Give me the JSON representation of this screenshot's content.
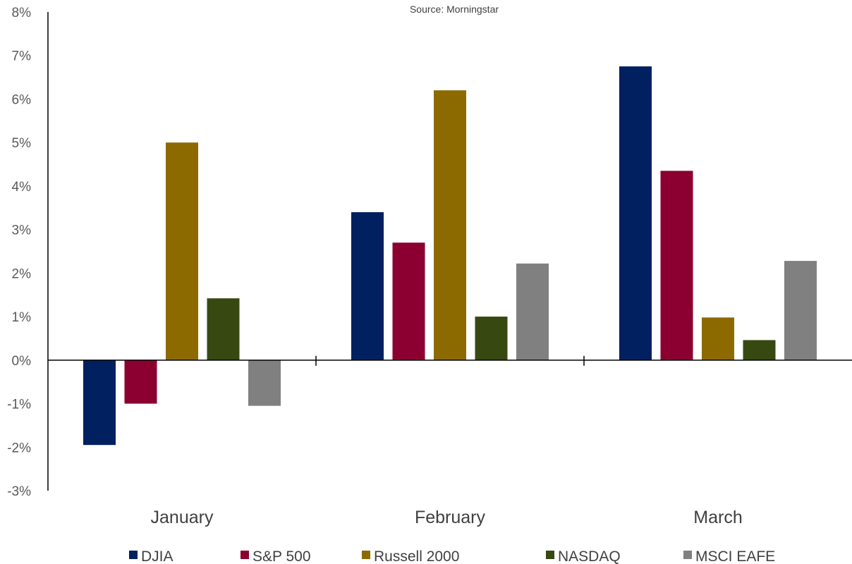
{
  "chart_data": {
    "type": "bar",
    "subtitle": "Source: Morningstar",
    "categories": [
      "January",
      "February",
      "March"
    ],
    "series": [
      {
        "name": "DJIA",
        "color": "#002060",
        "values": [
          -1.95,
          3.4,
          6.75
        ]
      },
      {
        "name": "S&P 500",
        "color": "#8B0030",
        "values": [
          -1.0,
          2.7,
          4.35
        ]
      },
      {
        "name": "Russell 2000",
        "color": "#8C6A00",
        "values": [
          5.0,
          6.2,
          0.98
        ]
      },
      {
        "name": "NASDAQ",
        "color": "#374911",
        "values": [
          1.42,
          1.0,
          0.46
        ]
      },
      {
        "name": "MSCI EAFE",
        "color": "#808080",
        "values": [
          -1.05,
          2.22,
          2.28
        ]
      }
    ],
    "ylim": [
      -3,
      8
    ],
    "yticks": [
      8,
      7,
      6,
      5,
      4,
      3,
      2,
      1,
      0,
      -1,
      -2,
      -3
    ],
    "ytick_labels": [
      "8%",
      "7%",
      "6%",
      "5%",
      "4%",
      "3%",
      "2%",
      "1%",
      "0%",
      "-1%",
      "-2%",
      "-3%"
    ],
    "grid": false,
    "legend_position": "bottom"
  }
}
